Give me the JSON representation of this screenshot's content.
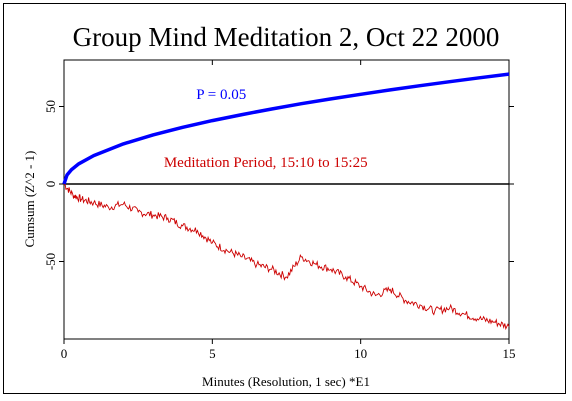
{
  "chart_data": {
    "type": "line",
    "title": "Group Mind Meditation 2, Oct 22 2000",
    "xlabel": "Minutes (Resolution, 1 sec)   *E1",
    "ylabel": "Cumsum (Z^2 - 1)",
    "xlim": [
      0,
      15
    ],
    "ylim": [
      -100,
      80
    ],
    "x_ticks": [
      0,
      5,
      10,
      15
    ],
    "y_ticks": [
      -50,
      0,
      50
    ],
    "grid": false,
    "zero_line": true,
    "series": [
      {
        "name": "P = 0.05",
        "color": "#0000ff",
        "x": [
          0,
          0.1,
          0.25,
          0.5,
          1,
          2,
          3,
          4,
          5,
          6,
          7,
          8,
          9,
          10,
          11,
          12,
          13,
          14,
          15
        ],
        "values": [
          0,
          5.8,
          9.2,
          13,
          18.3,
          25.9,
          31.7,
          36.6,
          40.9,
          44.8,
          48.4,
          51.8,
          54.9,
          57.9,
          60.7,
          63.4,
          66,
          68.5,
          70.9
        ]
      },
      {
        "color": "#cc0000",
        "x": [
          0,
          0.3,
          0.6,
          1,
          1.5,
          2,
          2.5,
          3,
          3.5,
          4,
          4.5,
          5,
          5.5,
          6,
          6.5,
          7,
          7.5,
          8,
          8.5,
          9,
          9.5,
          10,
          10.5,
          11,
          11.5,
          12,
          12.5,
          13,
          13.5,
          14,
          14.5,
          15
        ],
        "values": [
          0,
          -7,
          -10,
          -12,
          -15,
          -13,
          -18,
          -20,
          -22,
          -27,
          -30,
          -38,
          -43,
          -47,
          -52,
          -55,
          -60,
          -47,
          -52,
          -55,
          -60,
          -66,
          -72,
          -68,
          -75,
          -78,
          -82,
          -80,
          -84,
          -87,
          -89,
          -92
        ]
      }
    ],
    "annotations": [
      {
        "text": "P = 0.05",
        "x": 5.3,
        "y": 55,
        "color": "#0000ff"
      },
      {
        "text": "Meditation Period, 15:10 to 15:25",
        "x": 6.8,
        "y": 11,
        "color": "#cc0000"
      }
    ]
  }
}
